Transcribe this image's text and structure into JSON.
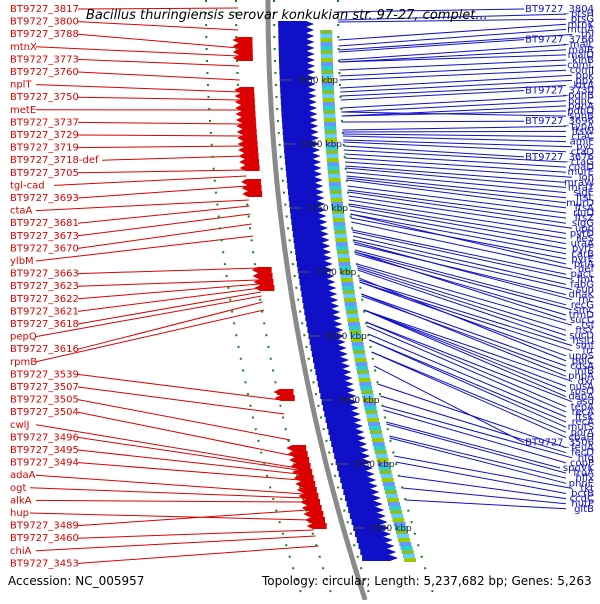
{
  "title": "Bacillus thuringiensis serovar konkukian str. 97-27, complet...",
  "footer": {
    "accession": "Accession: NC_005957",
    "info": "Topology: circular; Length: 5,237,682 bp; Genes: 5,263"
  },
  "colors": {
    "reverse_strand": "#dd0000",
    "forward_strand": "#1010c8",
    "backbone": "#8a8a8a",
    "ticks": "#118811"
  },
  "kbp_marks": [
    "3850 kbp",
    "3800 kbp",
    "3750 kbp",
    "3700 kbp",
    "3650 kbp",
    "3600 kbp",
    "3550 kbp",
    "3500 kbp"
  ],
  "left_labels": [
    {
      "text": "BT9727_3817",
      "target_y": 8
    },
    {
      "text": "BT9727_3800",
      "target_y": 30
    },
    {
      "text": "BT9727_3788",
      "target_y": 48
    },
    {
      "text": "mtnX",
      "target_y": 56
    },
    {
      "text": "BT9727_3773",
      "target_y": 66
    },
    {
      "text": "BT9727_3760",
      "target_y": 80
    },
    {
      "text": "nplT",
      "target_y": 92
    },
    {
      "text": "BT9727_3750",
      "target_y": 100
    },
    {
      "text": "metE",
      "target_y": 110
    },
    {
      "text": "BT9727_3737",
      "target_y": 124
    },
    {
      "text": "BT9727_3729",
      "target_y": 136
    },
    {
      "text": "BT9727_3719",
      "target_y": 146
    },
    {
      "text": "BT9727_3718-def",
      "target_y": 156
    },
    {
      "text": "BT9727_3705",
      "target_y": 170
    },
    {
      "text": "tgl-cad",
      "target_y": 176
    },
    {
      "text": "BT9727_3693",
      "target_y": 186
    },
    {
      "text": "ctaA",
      "target_y": 200
    },
    {
      "text": "BT9727_3681",
      "target_y": 206
    },
    {
      "text": "BT9727_3673",
      "target_y": 214
    },
    {
      "text": "BT9727_3670",
      "target_y": 224
    },
    {
      "text": "ylbM",
      "target_y": 236
    },
    {
      "text": "BT9727_3663",
      "target_y": 268
    },
    {
      "text": "BT9727_3623",
      "target_y": 280
    },
    {
      "text": "BT9727_3622",
      "target_y": 284
    },
    {
      "text": "BT9727_3621",
      "target_y": 288
    },
    {
      "text": "BT9727_3618",
      "target_y": 292
    },
    {
      "text": "pepQ",
      "target_y": 296
    },
    {
      "text": "BT9727_3616",
      "target_y": 302
    },
    {
      "text": "rpmB",
      "target_y": 310
    },
    {
      "text": "BT9727_3539",
      "target_y": 400
    },
    {
      "text": "BT9727_3507",
      "target_y": 414
    },
    {
      "text": "BT9727_3505",
      "target_y": 440
    },
    {
      "text": "BT9727_3504",
      "target_y": 456
    },
    {
      "text": "cwlJ",
      "target_y": 468
    },
    {
      "text": "BT9727_3496",
      "target_y": 470
    },
    {
      "text": "BT9727_3495",
      "target_y": 474
    },
    {
      "text": "BT9727_3494",
      "target_y": 480
    },
    {
      "text": "adaA",
      "target_y": 494
    },
    {
      "text": "ogt",
      "target_y": 498
    },
    {
      "text": "alkA",
      "target_y": 502
    },
    {
      "text": "hup",
      "target_y": 520
    },
    {
      "text": "BT9727_3489",
      "target_y": 510
    },
    {
      "text": "BT9727_3460",
      "target_y": 530
    },
    {
      "text": "chiA",
      "target_y": 536
    },
    {
      "text": "BT9727_3453",
      "target_y": 546
    }
  ],
  "right_labels": [
    {
      "text": "BT9727_3804",
      "target_y": 12
    },
    {
      "text": "ptsH",
      "target_y": 20
    },
    {
      "text": "ptsG",
      "target_y": 22
    },
    {
      "text": "mtnK",
      "target_y": 40
    },
    {
      "text": "mtnA",
      "target_y": 46
    },
    {
      "text": "thi",
      "target_y": 50
    },
    {
      "text": "BT9727_3766",
      "target_y": 52
    },
    {
      "text": "malL",
      "target_y": 60
    },
    {
      "text": "malR",
      "target_y": 62
    },
    {
      "text": "malD",
      "target_y": 62
    },
    {
      "text": "kinB",
      "target_y": 70
    },
    {
      "text": "comL",
      "target_y": 76
    },
    {
      "text": "comJ",
      "target_y": 80
    },
    {
      "text": "ppk",
      "target_y": 88
    },
    {
      "text": "ppx",
      "target_y": 92
    },
    {
      "text": "ktrA",
      "target_y": 96
    },
    {
      "text": "BT9727_3730",
      "target_y": 100
    },
    {
      "text": "pdhB",
      "target_y": 108
    },
    {
      "text": "pdhC",
      "target_y": 112
    },
    {
      "text": "pdhA",
      "target_y": 116
    },
    {
      "text": "pdhD",
      "target_y": 116
    },
    {
      "text": "suhB",
      "target_y": 112
    },
    {
      "text": "BT9727_3696",
      "target_y": 122
    },
    {
      "text": "typA",
      "target_y": 130
    },
    {
      "text": "ftsW",
      "target_y": 132
    },
    {
      "text": "ctaC",
      "target_y": 134
    },
    {
      "text": "amiF",
      "target_y": 136
    },
    {
      "text": "pyc",
      "target_y": 140
    },
    {
      "text": "ctaD",
      "target_y": 142
    },
    {
      "text": "BT9727_3676",
      "target_y": 146
    },
    {
      "text": "ctaG",
      "target_y": 150
    },
    {
      "text": "coaD",
      "target_y": 154
    },
    {
      "text": "murE",
      "target_y": 158
    },
    {
      "text": "lon",
      "target_y": 162
    },
    {
      "text": "mraW",
      "target_y": 166
    },
    {
      "text": "mraY",
      "target_y": 168
    },
    {
      "text": "sigE",
      "target_y": 172
    },
    {
      "text": "ftsL",
      "target_y": 176
    },
    {
      "text": "murD",
      "target_y": 178
    },
    {
      "text": "ftsA",
      "target_y": 180
    },
    {
      "text": "rluD",
      "target_y": 186
    },
    {
      "text": "ftsZ",
      "target_y": 190
    },
    {
      "text": "sigG",
      "target_y": 192
    },
    {
      "text": "upp",
      "target_y": 196
    },
    {
      "text": "pyrD",
      "target_y": 200
    },
    {
      "text": "ileS",
      "target_y": 204
    },
    {
      "text": "uraA",
      "target_y": 206
    },
    {
      "text": "pyrF",
      "target_y": 210
    },
    {
      "text": "carB",
      "target_y": 214
    },
    {
      "text": "pyrE",
      "target_y": 218
    },
    {
      "text": "priA",
      "target_y": 214
    },
    {
      "text": "def",
      "target_y": 222
    },
    {
      "text": "pacL",
      "target_y": 230
    },
    {
      "text": "fmt",
      "target_y": 232
    },
    {
      "text": "fabG",
      "target_y": 236
    },
    {
      "text": "sun",
      "target_y": 240
    },
    {
      "text": "dhaK",
      "target_y": 244
    },
    {
      "text": "rnc",
      "target_y": 242
    },
    {
      "text": "recG",
      "target_y": 250
    },
    {
      "text": "smc",
      "target_y": 252
    },
    {
      "text": "trmD",
      "target_y": 254
    },
    {
      "text": "sucC",
      "target_y": 252
    },
    {
      "text": "tsf",
      "target_y": 264
    },
    {
      "text": "ftsY",
      "target_y": 266
    },
    {
      "text": "sucD",
      "target_y": 268
    },
    {
      "text": "hslU",
      "target_y": 270
    },
    {
      "text": "smf",
      "target_y": 280
    },
    {
      "text": "frr",
      "target_y": 282
    },
    {
      "text": "uppS",
      "target_y": 282
    },
    {
      "text": "polC",
      "target_y": 278
    },
    {
      "text": "cdsA",
      "target_y": 294
    },
    {
      "text": "infB",
      "target_y": 296
    },
    {
      "text": "pnpA",
      "target_y": 294
    },
    {
      "text": "dxr",
      "target_y": 310
    },
    {
      "text": "nusA",
      "target_y": 310
    },
    {
      "text": "rpsO",
      "target_y": 310
    },
    {
      "text": "dapA",
      "target_y": 310
    },
    {
      "text": "asd",
      "target_y": 322
    },
    {
      "text": "tepA",
      "target_y": 322
    },
    {
      "text": "recA",
      "target_y": 326
    },
    {
      "text": "ftsK",
      "target_y": 334
    },
    {
      "text": "recA",
      "target_y": 340
    },
    {
      "text": "mutS",
      "target_y": 340
    },
    {
      "text": "porA",
      "target_y": 352
    },
    {
      "text": "cbaH",
      "target_y": 352
    },
    {
      "text": "BT9727_3506",
      "target_y": 366
    },
    {
      "text": "feuA",
      "target_y": 384
    },
    {
      "text": "fecD",
      "target_y": 396
    },
    {
      "text": "hfq",
      "target_y": 406
    },
    {
      "text": "copP",
      "target_y": 410
    },
    {
      "text": "spoVK",
      "target_y": 422
    },
    {
      "text": "fruA",
      "target_y": 424
    },
    {
      "text": "hflx",
      "target_y": 436
    },
    {
      "text": "phnE",
      "target_y": 438
    },
    {
      "text": "tkt",
      "target_y": 456
    },
    {
      "text": "bcrB",
      "target_y": 462
    },
    {
      "text": "ccdC",
      "target_y": 476
    },
    {
      "text": "hutP",
      "target_y": 488
    },
    {
      "text": "gltB",
      "target_y": 500
    }
  ]
}
